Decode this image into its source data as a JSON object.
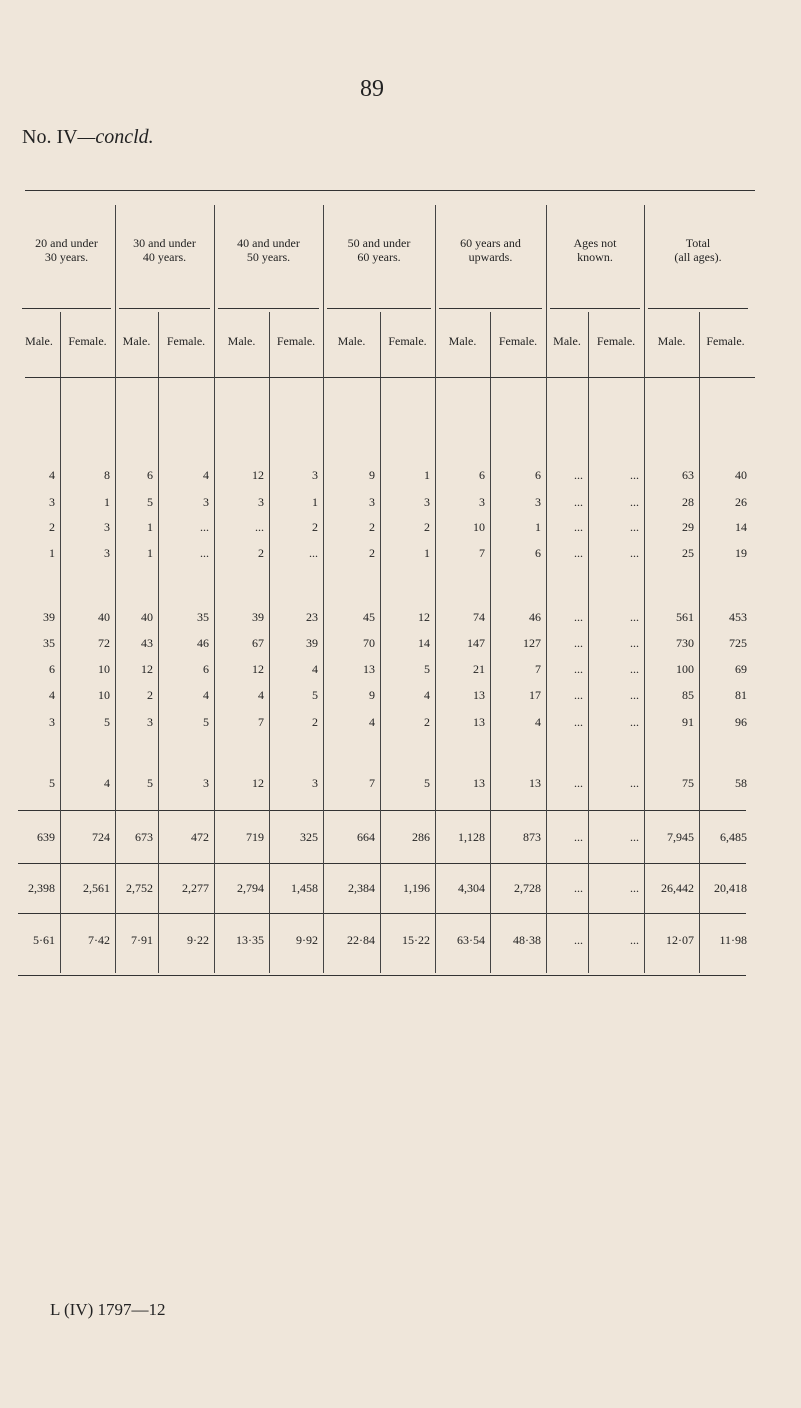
{
  "page_number": "89",
  "title": {
    "main": "No. IV",
    "suffix": "—concld."
  },
  "table": {
    "groups": [
      {
        "line1": "20 and under",
        "line2": "30 years."
      },
      {
        "line1": "30 and under",
        "line2": "40 years."
      },
      {
        "line1": "40 and under",
        "line2": "50 years."
      },
      {
        "line1": "50 and under",
        "line2": "60 years."
      },
      {
        "line1": "60 years and",
        "line2": "upwards."
      },
      {
        "line1": "Ages not",
        "line2": "known."
      },
      {
        "line1": "Total",
        "line2": "(all ages)."
      }
    ],
    "subheaders": [
      "Male.",
      "Female.",
      "Male.",
      "Female.",
      "Male.",
      "Female.",
      "Male.",
      "Female.",
      "Male.",
      "Female.",
      "Male.",
      "Female.",
      "Male.",
      "Female."
    ],
    "rows": [
      [
        "4",
        "8",
        "6",
        "4",
        "12",
        "3",
        "9",
        "1",
        "6",
        "6",
        "...",
        "...",
        "63",
        "40"
      ],
      [
        "3",
        "1",
        "5",
        "3",
        "3",
        "1",
        "3",
        "3",
        "3",
        "3",
        "...",
        "...",
        "28",
        "26"
      ],
      [
        "2",
        "3",
        "1",
        "...",
        "...",
        "2",
        "2",
        "2",
        "10",
        "1",
        "...",
        "...",
        "29",
        "14"
      ],
      [
        "1",
        "3",
        "1",
        "...",
        "2",
        "...",
        "2",
        "1",
        "7",
        "6",
        "...",
        "...",
        "25",
        "19"
      ],
      [
        "39",
        "40",
        "40",
        "35",
        "39",
        "23",
        "45",
        "12",
        "74",
        "46",
        "...",
        "...",
        "561",
        "453"
      ],
      [
        "35",
        "72",
        "43",
        "46",
        "67",
        "39",
        "70",
        "14",
        "147",
        "127",
        "...",
        "...",
        "730",
        "725"
      ],
      [
        "6",
        "10",
        "12",
        "6",
        "12",
        "4",
        "13",
        "5",
        "21",
        "7",
        "...",
        "...",
        "100",
        "69"
      ],
      [
        "4",
        "10",
        "2",
        "4",
        "4",
        "5",
        "9",
        "4",
        "13",
        "17",
        "...",
        "...",
        "85",
        "81"
      ],
      [
        "3",
        "5",
        "3",
        "5",
        "7",
        "2",
        "4",
        "2",
        "13",
        "4",
        "...",
        "...",
        "91",
        "96"
      ],
      [
        "5",
        "4",
        "5",
        "3",
        "12",
        "3",
        "7",
        "5",
        "13",
        "13",
        "...",
        "...",
        "75",
        "58"
      ],
      [
        "639",
        "724",
        "673",
        "472",
        "719",
        "325",
        "664",
        "286",
        "1,128",
        "873",
        "...",
        "...",
        "7,945",
        "6,485"
      ],
      [
        "2,398",
        "2,561",
        "2,752",
        "2,277",
        "2,794",
        "1,458",
        "2,384",
        "1,196",
        "4,304",
        "2,728",
        "...",
        "...",
        "26,442",
        "20,418"
      ],
      [
        "5·61",
        "7·42",
        "7·91",
        "9·22",
        "13·35",
        "9·92",
        "22·84",
        "15·22",
        "63·54",
        "48·38",
        "...",
        "...",
        "12·07",
        "11·98"
      ]
    ]
  },
  "footer": "L (IV) 1797—12"
}
